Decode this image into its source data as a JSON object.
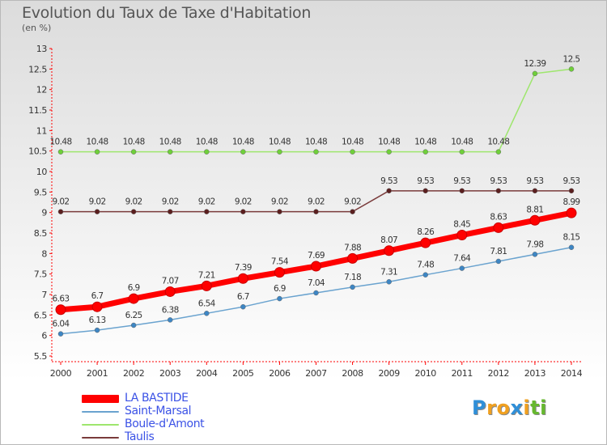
{
  "chart_data": {
    "type": "line",
    "title": "Evolution du Taux de Taxe d'Habitation",
    "unit_label": "(en %)",
    "x": [
      2000,
      2001,
      2002,
      2003,
      2004,
      2005,
      2006,
      2007,
      2008,
      2009,
      2010,
      2011,
      2012,
      2013,
      2014
    ],
    "x_tick_labels": [
      "2000",
      "2001",
      "2002",
      "2003",
      "2004",
      "2005",
      "2006",
      "2007",
      "2008",
      "2009",
      "2010",
      "2011",
      "2012",
      "2013",
      "2014"
    ],
    "ylim": [
      5.5,
      13
    ],
    "y_ticks": [
      5.5,
      6,
      6.5,
      7,
      7.5,
      8,
      8.5,
      9,
      9.5,
      10,
      10.5,
      11,
      11.5,
      12,
      12.5,
      13
    ],
    "y_tick_labels": [
      "5.5",
      "6",
      "6.5",
      "7",
      "7.5",
      "8",
      "8.5",
      "9",
      "9.5",
      "10",
      "10.5",
      "11",
      "11.5",
      "12",
      "12.5",
      "13"
    ],
    "grid": false,
    "legend_placement": "bottom-left",
    "series": [
      {
        "name": "LA BASTIDE",
        "color": "#ff0000",
        "values": [
          6.63,
          6.7,
          6.9,
          7.07,
          7.21,
          7.39,
          7.54,
          7.69,
          7.88,
          8.07,
          8.26,
          8.45,
          8.63,
          8.81,
          8.99
        ],
        "labels": [
          "6.63",
          "6.7",
          "6.9",
          "7.07",
          "7.21",
          "7.39",
          "7.54",
          "7.69",
          "7.88",
          "8.07",
          "8.26",
          "8.45",
          "8.63",
          "8.81",
          "8.99"
        ]
      },
      {
        "name": "Saint-Marsal",
        "color": "#6aa3cf",
        "marker_color": "#3d86c4",
        "values": [
          6.04,
          6.13,
          6.25,
          6.38,
          6.54,
          6.7,
          6.9,
          7.04,
          7.18,
          7.31,
          7.48,
          7.64,
          7.81,
          7.98,
          8.15
        ],
        "labels": [
          "6.04",
          "6.13",
          "6.25",
          "6.38",
          "6.54",
          "6.7",
          "6.9",
          "7.04",
          "7.18",
          "7.31",
          "7.48",
          "7.64",
          "7.81",
          "7.98",
          "8.15"
        ]
      },
      {
        "name": "Boule-d'Amont",
        "color": "#9ee66d",
        "marker_color": "#6fcf3a",
        "values": [
          10.48,
          10.48,
          10.48,
          10.48,
          10.48,
          10.48,
          10.48,
          10.48,
          10.48,
          10.48,
          10.48,
          10.48,
          10.48,
          12.39,
          12.5
        ],
        "labels": [
          "10.48",
          "10.48",
          "10.48",
          "10.48",
          "10.48",
          "10.48",
          "10.48",
          "10.48",
          "10.48",
          "10.48",
          "10.48",
          "10.48",
          "10.48",
          "12.39",
          "12.5"
        ]
      },
      {
        "name": "Taulis",
        "color": "#7a3b3b",
        "marker_color": "#5b1f1f",
        "values": [
          9.02,
          9.02,
          9.02,
          9.02,
          9.02,
          9.02,
          9.02,
          9.02,
          9.02,
          9.53,
          9.53,
          9.53,
          9.53,
          9.53,
          9.53
        ],
        "labels": [
          "9.02",
          "9.02",
          "9.02",
          "9.02",
          "9.02",
          "9.02",
          "9.02",
          "9.02",
          "9.02",
          "9.53",
          "9.53",
          "9.53",
          "9.53",
          "9.53",
          "9.53"
        ]
      }
    ]
  },
  "logo": {
    "letters": [
      "P",
      "r",
      "o",
      "x",
      "i",
      "t",
      "i"
    ],
    "colors": [
      "#2f8fd8",
      "#f0a020",
      "#f0a020",
      "#2f8fd8",
      "#f0a020",
      "#66b82e",
      "#66b82e"
    ]
  }
}
